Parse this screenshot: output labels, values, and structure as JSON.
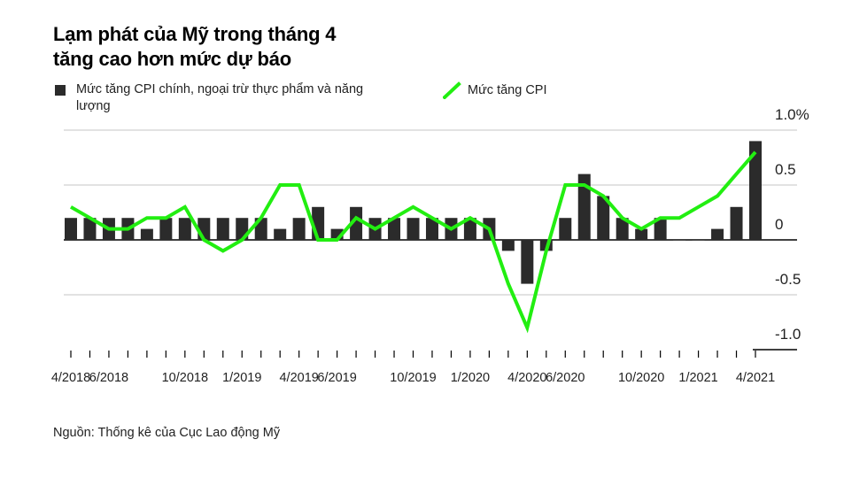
{
  "title_line1": "Lạm phát của Mỹ trong tháng 4",
  "title_line2": "tăng cao hơn mức dự báo",
  "source": "Nguồn: Thống kê của Cục Lao động Mỹ",
  "colors": {
    "bar": "#2b2b2b",
    "line": "#22ee11",
    "grid": "#d0d0d0",
    "zero": "#000000"
  },
  "chart_data": {
    "type": "bar+line",
    "title": "Lạm phát của Mỹ trong tháng 4 tăng cao hơn mức dự báo",
    "ylim": [
      -1.0,
      1.0
    ],
    "y_ticks": [
      {
        "value": 1.0,
        "label": "1.0%"
      },
      {
        "value": 0.5,
        "label": "0.5"
      },
      {
        "value": 0,
        "label": "0"
      },
      {
        "value": -0.5,
        "label": "-0.5"
      },
      {
        "value": -1.0,
        "label": "-1.0"
      }
    ],
    "x_tick_labels": [
      {
        "index": 0,
        "label": "4/2018"
      },
      {
        "index": 2,
        "label": "6/2018"
      },
      {
        "index": 6,
        "label": "10/2018"
      },
      {
        "index": 9,
        "label": "1/2019"
      },
      {
        "index": 12,
        "label": "4/2019"
      },
      {
        "index": 14,
        "label": "6/2019"
      },
      {
        "index": 18,
        "label": "10/2019"
      },
      {
        "index": 21,
        "label": "1/2020"
      },
      {
        "index": 24,
        "label": "4/2020"
      },
      {
        "index": 26,
        "label": "6/2020"
      },
      {
        "index": 30,
        "label": "10/2020"
      },
      {
        "index": 33,
        "label": "1/2021"
      },
      {
        "index": 36,
        "label": "4/2021"
      }
    ],
    "categories": [
      "4/2018",
      "5/2018",
      "6/2018",
      "7/2018",
      "8/2018",
      "9/2018",
      "10/2018",
      "11/2018",
      "12/2018",
      "1/2019",
      "2/2019",
      "3/2019",
      "4/2019",
      "5/2019",
      "6/2019",
      "7/2019",
      "8/2019",
      "9/2019",
      "10/2019",
      "11/2019",
      "12/2019",
      "1/2020",
      "2/2020",
      "3/2020",
      "4/2020",
      "5/2020",
      "6/2020",
      "7/2020",
      "8/2020",
      "9/2020",
      "10/2020",
      "11/2020",
      "12/2020",
      "1/2021",
      "2/2021",
      "3/2021",
      "4/2021"
    ],
    "series": [
      {
        "name": "Mức tăng CPI chính, ngoại trừ thực phẩm và năng lượng",
        "type": "bar",
        "values": [
          0.2,
          0.2,
          0.2,
          0.2,
          0.1,
          0.2,
          0.2,
          0.2,
          0.2,
          0.2,
          0.2,
          0.1,
          0.2,
          0.3,
          0.1,
          0.3,
          0.2,
          0.2,
          0.2,
          0.2,
          0.2,
          0.2,
          0.2,
          -0.1,
          -0.4,
          -0.1,
          0.2,
          0.6,
          0.4,
          0.2,
          0.1,
          0.2,
          0.0,
          0.0,
          0.1,
          0.3,
          0.9
        ]
      },
      {
        "name": "Mức tăng CPI",
        "type": "line",
        "values": [
          0.3,
          0.2,
          0.1,
          0.1,
          0.2,
          0.2,
          0.3,
          0.0,
          -0.1,
          0.0,
          0.2,
          0.5,
          0.5,
          0.0,
          0.0,
          0.2,
          0.1,
          0.2,
          0.3,
          0.2,
          0.1,
          0.2,
          0.1,
          -0.4,
          -0.8,
          -0.1,
          0.5,
          0.5,
          0.4,
          0.2,
          0.1,
          0.2,
          0.2,
          0.3,
          0.4,
          0.6,
          0.8
        ]
      }
    ]
  }
}
